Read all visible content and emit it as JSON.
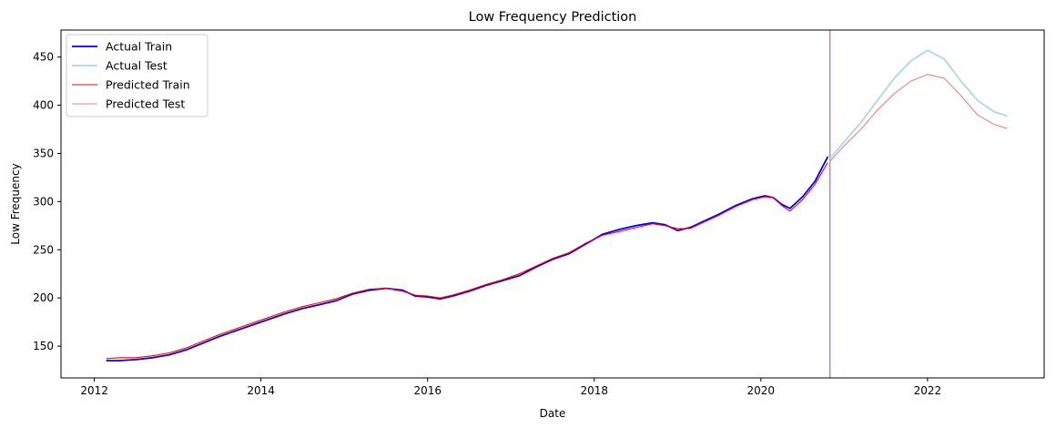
{
  "chart_data": {
    "type": "line",
    "title": "Low Frequency Prediction",
    "xlabel": "Date",
    "ylabel": "Low Frequency",
    "xlim": [
      2011.6,
      2023.4
    ],
    "ylim": [
      117,
      478
    ],
    "x_ticks": [
      2012,
      2014,
      2016,
      2018,
      2020,
      2022
    ],
    "x_tick_labels": [
      "2012",
      "2014",
      "2016",
      "2018",
      "2020",
      "2022"
    ],
    "y_ticks": [
      150,
      200,
      250,
      300,
      350,
      400,
      450
    ],
    "y_tick_labels": [
      "150",
      "200",
      "250",
      "300",
      "350",
      "400",
      "450"
    ],
    "grid": false,
    "legend_position": "upper-left",
    "split_date": 2020.83,
    "split_line_color": "#8e3a8e",
    "series": [
      {
        "name": "Actual Train",
        "color": "#0000ff",
        "width": 1.8,
        "x": [
          2012.15,
          2012.3,
          2012.5,
          2012.7,
          2012.9,
          2013.1,
          2013.3,
          2013.5,
          2013.7,
          2013.9,
          2014.1,
          2014.3,
          2014.5,
          2014.7,
          2014.9,
          2015.1,
          2015.3,
          2015.5,
          2015.7,
          2015.85,
          2016.0,
          2016.15,
          2016.3,
          2016.5,
          2016.7,
          2016.9,
          2017.1,
          2017.3,
          2017.5,
          2017.7,
          2017.9,
          2018.1,
          2018.3,
          2018.5,
          2018.7,
          2018.85,
          2019.0,
          2019.15,
          2019.3,
          2019.5,
          2019.7,
          2019.9,
          2020.05,
          2020.15,
          2020.25,
          2020.35,
          2020.5,
          2020.65,
          2020.8
        ],
        "values": [
          135,
          135,
          136,
          138,
          141,
          146,
          153,
          160,
          166,
          172,
          178,
          184,
          189,
          193,
          197,
          204,
          208,
          210,
          208,
          202,
          201,
          199,
          202,
          207,
          213,
          218,
          223,
          232,
          240,
          246,
          256,
          266,
          271,
          275,
          278,
          276,
          270,
          273,
          279,
          287,
          296,
          303,
          306,
          304,
          297,
          293,
          305,
          321,
          346
        ]
      },
      {
        "name": "Actual Test",
        "color": "#add8e6",
        "width": 1.8,
        "x": [
          2020.83,
          2021.0,
          2021.2,
          2021.4,
          2021.6,
          2021.8,
          2022.0,
          2022.2,
          2022.4,
          2022.6,
          2022.8,
          2022.95
        ],
        "values": [
          345,
          362,
          382,
          405,
          428,
          446,
          457,
          448,
          425,
          405,
          393,
          389
        ]
      },
      {
        "name": "Predicted Train",
        "color": "#ff0000",
        "width": 1.1,
        "x": [
          2012.15,
          2012.3,
          2012.5,
          2012.7,
          2012.9,
          2013.1,
          2013.3,
          2013.5,
          2013.7,
          2013.9,
          2014.1,
          2014.3,
          2014.5,
          2014.7,
          2014.9,
          2015.1,
          2015.3,
          2015.5,
          2015.7,
          2015.85,
          2016.0,
          2016.15,
          2016.3,
          2016.5,
          2016.7,
          2016.9,
          2017.1,
          2017.3,
          2017.5,
          2017.7,
          2017.9,
          2018.1,
          2018.3,
          2018.5,
          2018.7,
          2018.85,
          2019.0,
          2019.15,
          2019.3,
          2019.5,
          2019.7,
          2019.9,
          2020.05,
          2020.15,
          2020.25,
          2020.35,
          2020.5,
          2020.65,
          2020.8
        ],
        "values": [
          137,
          138,
          138,
          140,
          143,
          148,
          155,
          162,
          168,
          174,
          180,
          186,
          191,
          195,
          199,
          205,
          209,
          210,
          207,
          203,
          202,
          200,
          203,
          208,
          214,
          219,
          225,
          233,
          241,
          247,
          257,
          265,
          269,
          273,
          277,
          275,
          272,
          272,
          278,
          286,
          295,
          302,
          305,
          304,
          296,
          290,
          302,
          318,
          340
        ]
      },
      {
        "name": "Predicted Test",
        "color": "#f08080",
        "width": 1.1,
        "x": [
          2020.83,
          2021.0,
          2021.2,
          2021.4,
          2021.6,
          2021.8,
          2022.0,
          2022.2,
          2022.4,
          2022.6,
          2022.8,
          2022.95
        ],
        "values": [
          342,
          358,
          375,
          395,
          412,
          425,
          432,
          428,
          410,
          390,
          380,
          376
        ]
      }
    ]
  }
}
